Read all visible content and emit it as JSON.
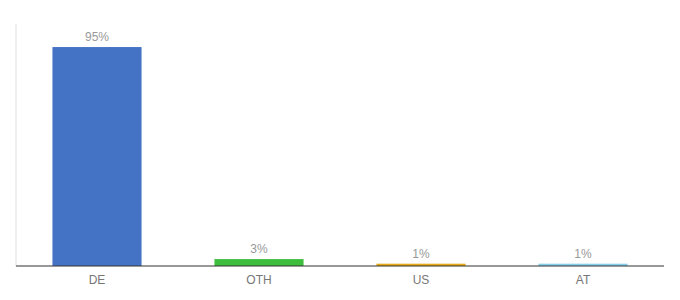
{
  "chart_data": {
    "type": "bar",
    "categories": [
      "DE",
      "OTH",
      "US",
      "AT"
    ],
    "values": [
      95,
      3,
      1,
      1
    ],
    "value_labels": [
      "95%",
      "3%",
      "1%",
      "1%"
    ],
    "colors": [
      "#4472C4",
      "#3DBF3D",
      "#E6A817",
      "#87CEEB"
    ],
    "ylim": [
      0,
      105
    ],
    "data_labels": true,
    "tick_labels": "x",
    "grid": false
  }
}
